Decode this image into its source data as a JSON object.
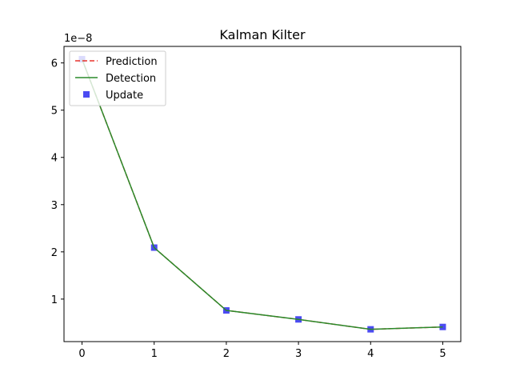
{
  "chart_data": {
    "type": "line",
    "title": "Kalman Kilter",
    "xlabel": "",
    "ylabel": "",
    "y_offset_label": "1e−8",
    "x_ticks": [
      "0",
      "1",
      "2",
      "3",
      "4",
      "5"
    ],
    "y_ticks": [
      "1",
      "2",
      "3",
      "4",
      "5",
      "6"
    ],
    "xlim": [
      -0.25,
      5.25
    ],
    "ylim": [
      0.1,
      6.35
    ],
    "legend_position": "top-left",
    "x": [
      0,
      1,
      2,
      3,
      4,
      5
    ],
    "series": [
      {
        "name": "Prediction",
        "style": "dashed-line",
        "color": "#e8332b",
        "values": [
          6.08,
          2.09,
          0.76,
          0.57,
          0.36,
          0.41
        ]
      },
      {
        "name": "Detection",
        "style": "solid-line",
        "color": "#2a8a2a",
        "values": [
          6.08,
          2.09,
          0.76,
          0.57,
          0.36,
          0.41
        ]
      },
      {
        "name": "Update",
        "style": "square-markers",
        "color": "#2b2bf0",
        "values": [
          6.08,
          2.09,
          0.76,
          0.57,
          0.36,
          0.41
        ]
      }
    ]
  }
}
